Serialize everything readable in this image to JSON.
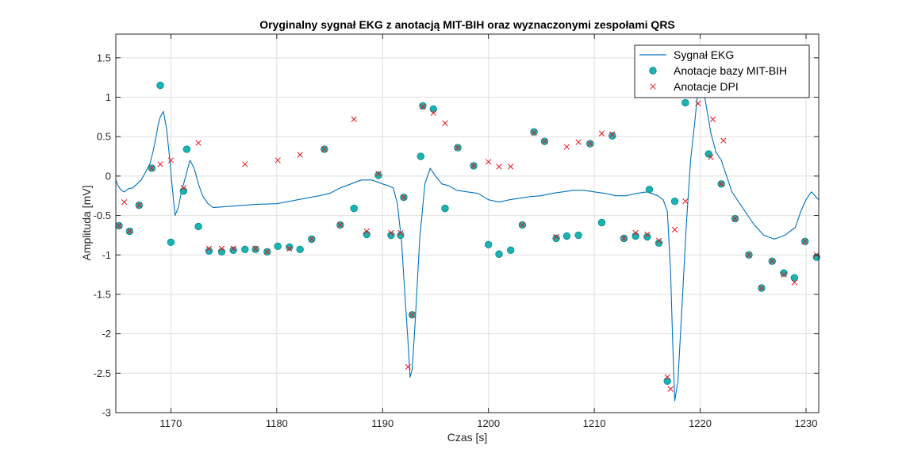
{
  "chart_data": {
    "type": "line",
    "title": "Oryginalny sygnał EKG z anotacją MIT-BIH oraz wyznaczonymi zespołami QRS",
    "xlabel": "Czas [s]",
    "ylabel": "Amplituda [mV]",
    "xlim": [
      1164.8,
      1231.2
    ],
    "ylim": [
      -3.0,
      1.8
    ],
    "grid": true,
    "legend_position": "top-right",
    "xticks": [
      1170,
      1180,
      1190,
      1200,
      1210,
      1220,
      1230
    ],
    "yticks": [
      -3,
      -2.5,
      -2,
      -1.5,
      -1,
      -0.5,
      0,
      0.5,
      1,
      1.5
    ],
    "colors": {
      "signal": "#0072BD",
      "annotations": "#19B3B3",
      "dpi": "#E8171F"
    },
    "series": [
      {
        "name": "Sygnał EKG",
        "kind": "line",
        "x": [
          1164.8,
          1165.0,
          1165.3,
          1165.6,
          1166.0,
          1166.4,
          1166.8,
          1167.2,
          1167.6,
          1168.0,
          1168.3,
          1168.6,
          1168.8,
          1169.0,
          1169.3,
          1169.6,
          1169.9,
          1170.1,
          1170.4,
          1170.7,
          1171.0,
          1171.4,
          1171.8,
          1172.2,
          1172.6,
          1173.0,
          1173.5,
          1174.0,
          1176.0,
          1178.0,
          1180.0,
          1182.0,
          1184.0,
          1185.0,
          1186.0,
          1187.0,
          1188.0,
          1189.0,
          1190.0,
          1190.5,
          1191.0,
          1191.4,
          1191.8,
          1192.1,
          1192.4,
          1192.6,
          1192.8,
          1193.1,
          1193.5,
          1194.0,
          1194.5,
          1195.0,
          1195.6,
          1196.2,
          1197.0,
          1198.0,
          1199.0,
          1200.0,
          1201.0,
          1202.0,
          1203.0,
          1204.0,
          1205.0,
          1206.0,
          1207.0,
          1208.0,
          1209.0,
          1210.0,
          1211.0,
          1212.0,
          1213.0,
          1214.0,
          1215.0,
          1216.0,
          1216.5,
          1216.9,
          1217.2,
          1217.4,
          1217.6,
          1217.9,
          1218.3,
          1218.7,
          1219.1,
          1219.5,
          1219.8,
          1220.1,
          1220.5,
          1221.0,
          1221.5,
          1222.0,
          1222.5,
          1223.0,
          1224.0,
          1225.0,
          1226.0,
          1227.0,
          1228.0,
          1229.0,
          1229.5,
          1230.0,
          1230.5,
          1231.2
        ],
        "y": [
          -0.05,
          -0.12,
          -0.18,
          -0.2,
          -0.16,
          -0.15,
          -0.1,
          -0.05,
          0.05,
          0.15,
          0.3,
          0.5,
          0.65,
          0.75,
          0.82,
          0.6,
          0.2,
          -0.1,
          -0.5,
          -0.4,
          -0.2,
          0.0,
          0.2,
          0.1,
          -0.1,
          -0.25,
          -0.35,
          -0.4,
          -0.38,
          -0.36,
          -0.35,
          -0.3,
          -0.25,
          -0.22,
          -0.15,
          -0.1,
          -0.05,
          -0.05,
          -0.1,
          -0.12,
          -0.15,
          -0.35,
          -0.85,
          -1.5,
          -2.1,
          -2.55,
          -2.45,
          -1.8,
          -0.8,
          -0.1,
          0.1,
          0.0,
          -0.1,
          -0.12,
          -0.18,
          -0.2,
          -0.22,
          -0.3,
          -0.33,
          -0.3,
          -0.28,
          -0.26,
          -0.25,
          -0.22,
          -0.2,
          -0.18,
          -0.18,
          -0.2,
          -0.22,
          -0.25,
          -0.25,
          -0.22,
          -0.2,
          -0.25,
          -0.3,
          -0.45,
          -1.2,
          -2.1,
          -2.85,
          -2.6,
          -1.6,
          -0.6,
          0.2,
          0.7,
          1.1,
          1.2,
          0.95,
          0.55,
          0.3,
          0.2,
          0.0,
          -0.2,
          -0.4,
          -0.6,
          -0.75,
          -0.8,
          -0.75,
          -0.65,
          -0.45,
          -0.3,
          -0.2,
          -0.3
        ]
      },
      {
        "name": "Anotacje bazy MIT-BIH",
        "kind": "marker-circle",
        "x": [
          1165.1,
          1166.1,
          1167.0,
          1168.2,
          1169.0,
          1170.0,
          1171.2,
          1171.5,
          1172.6,
          1173.6,
          1174.8,
          1175.9,
          1177.0,
          1178.0,
          1179.1,
          1180.1,
          1181.2,
          1182.2,
          1183.3,
          1184.5,
          1186.0,
          1187.3,
          1188.5,
          1189.6,
          1190.8,
          1191.7,
          1192.0,
          1192.8,
          1193.6,
          1193.8,
          1194.8,
          1195.9,
          1197.1,
          1198.6,
          1200.0,
          1201.0,
          1202.1,
          1203.2,
          1204.3,
          1205.3,
          1206.4,
          1207.4,
          1208.5,
          1209.6,
          1210.7,
          1211.7,
          1212.8,
          1213.9,
          1215.0,
          1215.2,
          1216.1,
          1216.9,
          1217.6,
          1218.6,
          1219.8,
          1220.8,
          1222.0,
          1223.3,
          1224.6,
          1225.8,
          1226.8,
          1227.9,
          1228.9,
          1229.9,
          1231.0
        ],
        "y": [
          -0.63,
          -0.7,
          -0.37,
          0.1,
          1.15,
          -0.84,
          -0.19,
          0.34,
          -0.64,
          -0.95,
          -0.96,
          -0.94,
          -0.93,
          -0.93,
          -0.96,
          -0.89,
          -0.9,
          -0.93,
          -0.8,
          0.34,
          -0.62,
          -0.41,
          -0.74,
          0.01,
          -0.75,
          -0.75,
          -0.27,
          -1.76,
          0.25,
          0.89,
          0.85,
          -0.41,
          0.36,
          0.13,
          -0.87,
          -0.99,
          -0.94,
          -0.62,
          0.56,
          0.44,
          -0.79,
          -0.76,
          -0.75,
          0.41,
          -0.59,
          0.51,
          -0.79,
          -0.76,
          -0.77,
          -0.17,
          -0.85,
          -2.6,
          -0.32,
          0.93,
          1.05,
          0.28,
          -0.1,
          -0.54,
          -1.0,
          -1.42,
          -1.08,
          -1.23,
          -1.29,
          -0.83,
          -1.03
        ]
      },
      {
        "name": "Anotacje DPI",
        "kind": "marker-x",
        "x": [
          1165.1,
          1165.6,
          1166.1,
          1167.0,
          1168.2,
          1169.0,
          1170.0,
          1171.2,
          1172.6,
          1173.6,
          1174.8,
          1175.9,
          1177.0,
          1178.0,
          1179.1,
          1180.1,
          1181.2,
          1182.2,
          1183.3,
          1184.5,
          1186.0,
          1187.3,
          1188.5,
          1189.6,
          1190.8,
          1191.7,
          1192.0,
          1192.4,
          1192.8,
          1193.8,
          1194.8,
          1195.9,
          1197.1,
          1198.6,
          1200.0,
          1201.0,
          1202.1,
          1203.2,
          1204.3,
          1205.3,
          1206.4,
          1207.4,
          1208.5,
          1209.6,
          1210.7,
          1211.7,
          1212.8,
          1213.9,
          1215.0,
          1216.1,
          1216.9,
          1217.2,
          1217.6,
          1218.6,
          1219.8,
          1220.8,
          1221.0,
          1221.2,
          1222.0,
          1222.2,
          1223.3,
          1224.6,
          1225.8,
          1226.8,
          1227.9,
          1228.9,
          1229.9,
          1231.0
        ],
        "y": [
          -0.63,
          -0.33,
          -0.7,
          -0.37,
          0.1,
          0.15,
          0.2,
          -0.15,
          0.42,
          -0.92,
          -0.92,
          -0.92,
          0.15,
          -0.92,
          -0.96,
          0.2,
          -0.92,
          0.27,
          -0.8,
          0.34,
          -0.62,
          0.72,
          -0.7,
          0.03,
          -0.72,
          -0.72,
          -0.27,
          -2.42,
          -1.76,
          0.88,
          0.8,
          0.67,
          0.36,
          0.13,
          0.18,
          0.12,
          0.12,
          -0.62,
          0.55,
          0.44,
          -0.77,
          0.37,
          0.43,
          0.41,
          0.54,
          0.53,
          -0.79,
          -0.72,
          -0.74,
          -0.82,
          -2.55,
          -2.7,
          -0.68,
          -0.32,
          0.92,
          1.05,
          0.24,
          0.72,
          -0.1,
          0.45,
          -0.54,
          -1.0,
          -1.42,
          -1.08,
          -1.25,
          -1.35,
          -0.83,
          -1.0
        ]
      }
    ]
  }
}
